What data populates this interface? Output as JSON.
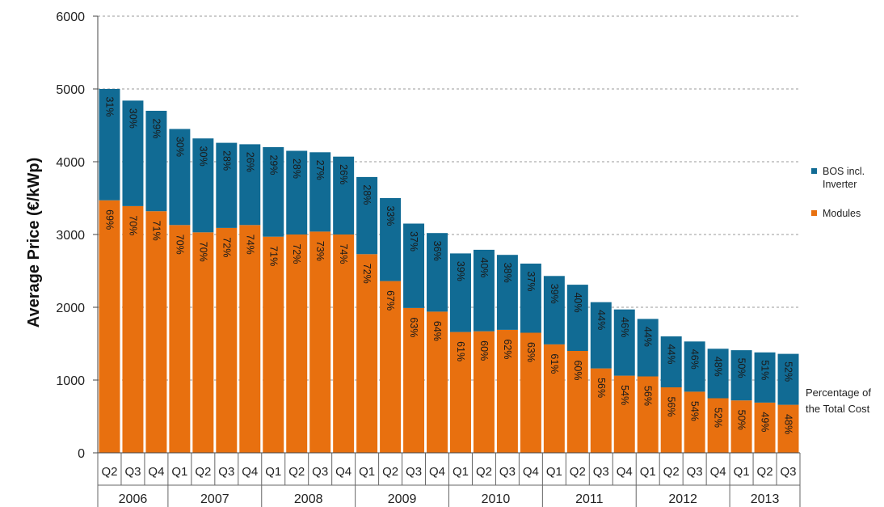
{
  "chart_data": {
    "type": "bar",
    "stacked": true,
    "ylabel": "Average Price (€/kWp)",
    "ylim": [
      0,
      6000
    ],
    "yticks": [
      0,
      1000,
      2000,
      3000,
      4000,
      5000,
      6000
    ],
    "grid": "horizontal dashed",
    "legend_position": "right",
    "annotation": [
      "Percentage of",
      "the Total Cost"
    ],
    "years": [
      {
        "label": "2006",
        "quarters": 3
      },
      {
        "label": "2007",
        "quarters": 4
      },
      {
        "label": "2008",
        "quarters": 4
      },
      {
        "label": "2009",
        "quarters": 4
      },
      {
        "label": "2010",
        "quarters": 4
      },
      {
        "label": "2011",
        "quarters": 4
      },
      {
        "label": "2012",
        "quarters": 4
      },
      {
        "label": "2013",
        "quarters": 3
      }
    ],
    "categories": [
      "Q2",
      "Q3",
      "Q4",
      "Q1",
      "Q2",
      "Q3",
      "Q4",
      "Q1",
      "Q2",
      "Q3",
      "Q4",
      "Q1",
      "Q2",
      "Q3",
      "Q4",
      "Q1",
      "Q2",
      "Q3",
      "Q4",
      "Q1",
      "Q2",
      "Q3",
      "Q4",
      "Q1",
      "Q2",
      "Q3",
      "Q4",
      "Q1",
      "Q2",
      "Q3"
    ],
    "series": [
      {
        "name": "Modules",
        "color": "#e8700f",
        "values": [
          3470,
          3390,
          3320,
          3130,
          3030,
          3090,
          3130,
          2970,
          3000,
          3040,
          3000,
          2730,
          2360,
          1990,
          1940,
          1660,
          1670,
          1690,
          1650,
          1490,
          1400,
          1160,
          1060,
          1050,
          900,
          840,
          750,
          720,
          690,
          660
        ],
        "percent_labels": [
          "69%",
          "70%",
          "71%",
          "70%",
          "70%",
          "72%",
          "74%",
          "71%",
          "72%",
          "73%",
          "74%",
          "72%",
          "67%",
          "63%",
          "64%",
          "61%",
          "60%",
          "62%",
          "63%",
          "61%",
          "60%",
          "56%",
          "54%",
          "56%",
          "56%",
          "54%",
          "52%",
          "50%",
          "49%",
          "48%"
        ]
      },
      {
        "name": "BOS incl. Inverter",
        "color": "#116b94",
        "values": [
          1530,
          1450,
          1380,
          1320,
          1290,
          1170,
          1110,
          1230,
          1150,
          1090,
          1070,
          1060,
          1140,
          1160,
          1080,
          1080,
          1120,
          1030,
          950,
          940,
          910,
          910,
          910,
          790,
          700,
          690,
          680,
          690,
          690,
          700
        ],
        "percent_labels": [
          "31%",
          "30%",
          "29%",
          "30%",
          "30%",
          "28%",
          "26%",
          "29%",
          "28%",
          "27%",
          "26%",
          "28%",
          "33%",
          "37%",
          "36%",
          "39%",
          "40%",
          "38%",
          "37%",
          "39%",
          "40%",
          "44%",
          "46%",
          "44%",
          "44%",
          "46%",
          "48%",
          "50%",
          "51%",
          "52%"
        ]
      }
    ]
  },
  "legend": {
    "bos_label_line1": "BOS incl.",
    "bos_label_line2": "Inverter",
    "modules_label": "Modules",
    "bos_color": "#116b94",
    "modules_color": "#e8700f"
  }
}
